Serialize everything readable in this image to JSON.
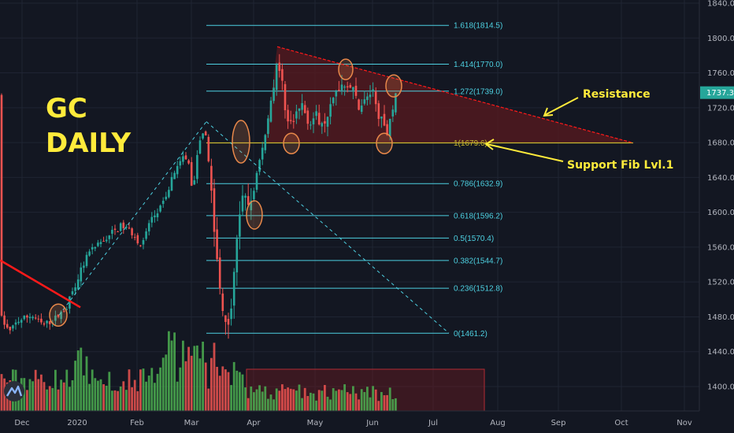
{
  "chart_data": {
    "type": "candlestick",
    "title": "GC DAILY",
    "title_lines": [
      "GC",
      "DAILY"
    ],
    "instrument": "GC",
    "timeframe": "DAILY",
    "x_ticks": [
      "Dec",
      "2020",
      "Feb",
      "Mar",
      "Apr",
      "May",
      "Jun",
      "Jul",
      "Aug",
      "Sep",
      "Oct",
      "Nov"
    ],
    "y_ticks": [
      "1840.0",
      "1800.0",
      "1760.0",
      "1720.0",
      "1680.0",
      "1640.0",
      "1600.0",
      "1560.0",
      "1520.0",
      "1480.0",
      "1440.0",
      "1400.0"
    ],
    "ylim": [
      1390,
      1842
    ],
    "last_price": "1737.3",
    "grid": true,
    "fib_levels": [
      {
        "ratio": 1.618,
        "price": 1814.5,
        "label": "1.618(1814.5)"
      },
      {
        "ratio": 1.414,
        "price": 1770.0,
        "label": "1.414(1770.0)"
      },
      {
        "ratio": 1.272,
        "price": 1739.0,
        "label": "1.272(1739.0)"
      },
      {
        "ratio": 1,
        "price": 1679.6,
        "label": "1(1679.6)"
      },
      {
        "ratio": 0.786,
        "price": 1632.9,
        "label": "0.786(1632.9)"
      },
      {
        "ratio": 0.618,
        "price": 1596.2,
        "label": "0.618(1596.2)"
      },
      {
        "ratio": 0.5,
        "price": 1570.4,
        "label": "0.5(1570.4)"
      },
      {
        "ratio": 0.382,
        "price": 1544.7,
        "label": "0.382(1544.7)"
      },
      {
        "ratio": 0.236,
        "price": 1512.8,
        "label": "0.236(1512.8)"
      },
      {
        "ratio": 0,
        "price": 1461.2,
        "label": "0(1461.2)"
      }
    ],
    "annotations": [
      {
        "text": "Resistance",
        "kind": "descending trendline"
      },
      {
        "text": "Support Fib Lvl.1",
        "kind": "horizontal support"
      }
    ]
  },
  "colors": {
    "background": "#131722",
    "grid": "#1f2433",
    "up": "#26a69a",
    "down": "#ef5350",
    "volume_up": "#4caf50",
    "volume_down": "#ef5350",
    "fib": "#4dd0e1",
    "support": "#c8b830",
    "triangle_fill": "#5a1a1f",
    "trend": "#ff1a1a",
    "annotation": "#ffeb3b",
    "circle": "#e8884a"
  },
  "icons": {
    "logo": "tradingview-logo-icon"
  }
}
